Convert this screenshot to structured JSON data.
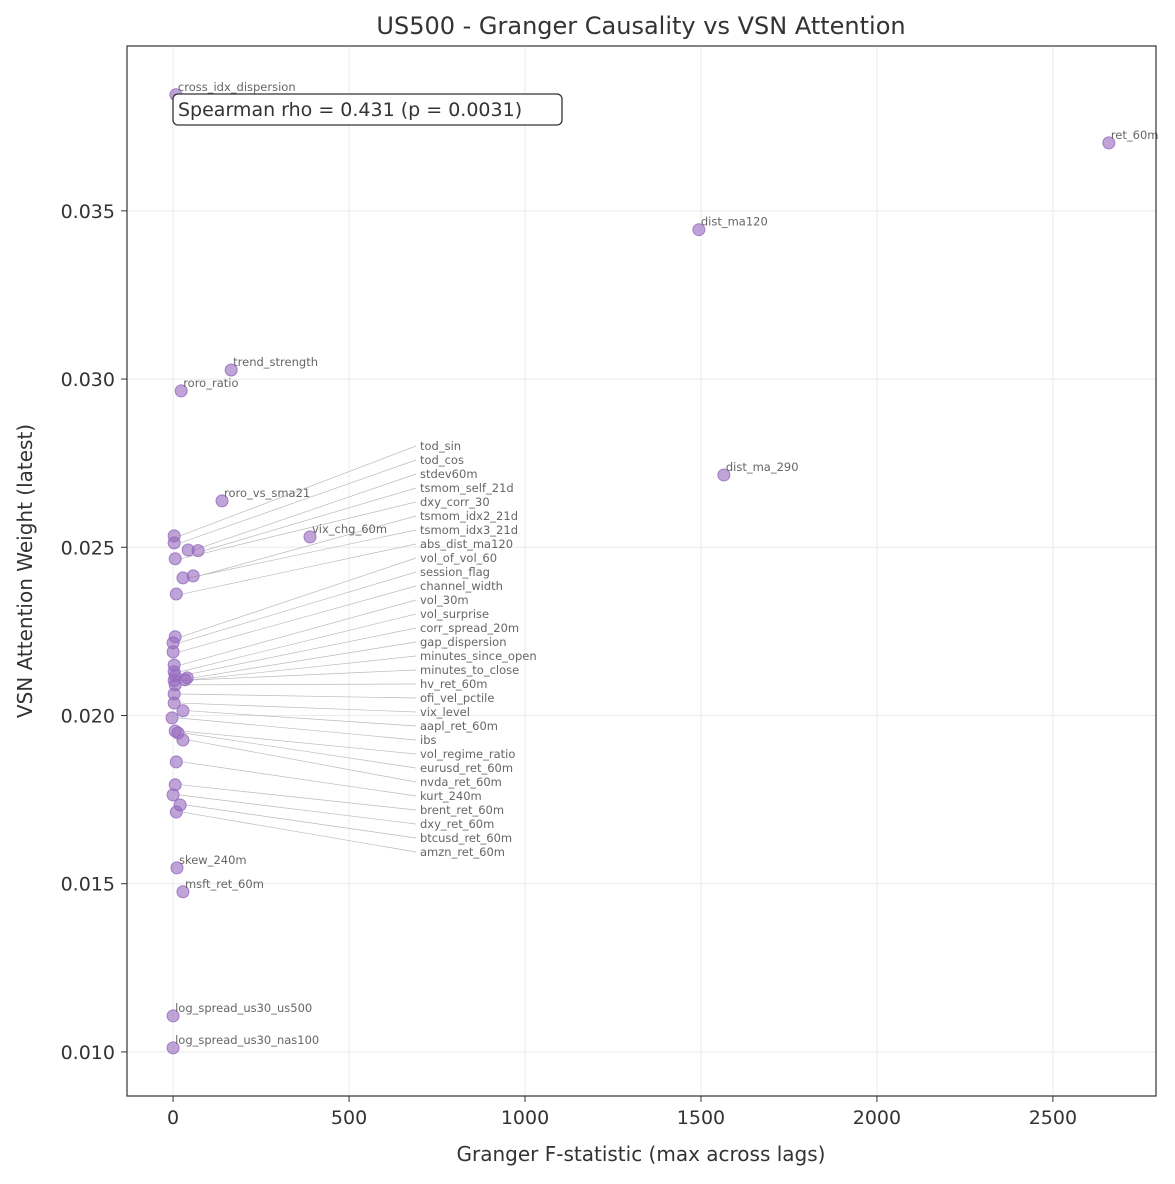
{
  "chart_data": {
    "type": "scatter",
    "title": "US500 - Granger Causality vs VSN Attention",
    "xlabel": "Granger F-statistic (max across lags)",
    "ylabel": "VSN Attention Weight (latest)",
    "xlim": [
      -131,
      2793
    ],
    "ylim": [
      0.00869,
      0.0399
    ],
    "xticks": [
      0,
      500,
      1000,
      1500,
      2000,
      2500
    ],
    "xtick_labels": [
      "0",
      "500",
      "1000",
      "1500",
      "2000",
      "2500"
    ],
    "yticks": [
      0.01,
      0.015,
      0.02,
      0.025,
      0.03,
      0.035
    ],
    "ytick_labels": [
      "0.010",
      "0.015",
      "0.020",
      "0.025",
      "0.030",
      "0.035"
    ],
    "grid": true,
    "point_color": "#9467bd",
    "annotation": "Spearman rho = 0.431 (p = 0.0031)",
    "points": [
      {
        "label": "cross_idx_dispersion",
        "x": 8,
        "y": 0.03845
      },
      {
        "label": "ret_60m",
        "x": 2659,
        "y": 0.03702
      },
      {
        "label": "dist_ma120",
        "x": 1494,
        "y": 0.03444
      },
      {
        "label": "trend_strength",
        "x": 165,
        "y": 0.03027
      },
      {
        "label": "roro_ratio",
        "x": 23,
        "y": 0.02965
      },
      {
        "label": "dist_ma_290",
        "x": 1565,
        "y": 0.02715
      },
      {
        "label": "roro_vs_sma21",
        "x": 139,
        "y": 0.02638
      },
      {
        "label": "vix_chg_60m",
        "x": 389,
        "y": 0.02531
      },
      {
        "label": "tod_sin",
        "x": 3,
        "y": 0.02534
      },
      {
        "label": "tod_cos",
        "x": 3,
        "y": 0.02513
      },
      {
        "label": "stdev60m",
        "x": 43,
        "y": 0.02492
      },
      {
        "label": "tsmom_self_21d",
        "x": 71,
        "y": 0.0249
      },
      {
        "label": "dxy_corr_30",
        "x": 6,
        "y": 0.02466
      },
      {
        "label": "tsmom_idx2_21d",
        "x": 57,
        "y": 0.02415
      },
      {
        "label": "tsmom_idx3_21d",
        "x": 28,
        "y": 0.02409
      },
      {
        "label": "abs_dist_ma120",
        "x": 9,
        "y": 0.02361
      },
      {
        "label": "vol_of_vol_60",
        "x": 6,
        "y": 0.02234
      },
      {
        "label": "session_flag",
        "x": 0,
        "y": 0.02216
      },
      {
        "label": "channel_width",
        "x": 0,
        "y": 0.02189
      },
      {
        "label": "vol_30m",
        "x": 3,
        "y": 0.0215
      },
      {
        "label": "vol_surprise",
        "x": 3,
        "y": 0.0213
      },
      {
        "label": "corr_spread_20m",
        "x": 6,
        "y": 0.02118
      },
      {
        "label": "gap_dispersion",
        "x": 40,
        "y": 0.02112
      },
      {
        "label": "minutes_to_close",
        "x": 3,
        "y": 0.02104
      },
      {
        "label": "minutes_since_open",
        "x": 34,
        "y": 0.02106
      },
      {
        "label": "hv_ret_60m",
        "x": 6,
        "y": 0.02091
      },
      {
        "label": "ofi_vel_pctile",
        "x": 3,
        "y": 0.02064
      },
      {
        "label": "vix_level",
        "x": 3,
        "y": 0.02037
      },
      {
        "label": "aapl_ret_60m",
        "x": 28,
        "y": 0.02014
      },
      {
        "label": "ibs",
        "x": -3,
        "y": 0.01993
      },
      {
        "label": "vol_regime_ratio",
        "x": 6,
        "y": 0.01954
      },
      {
        "label": "eurusd_ret_60m",
        "x": 14,
        "y": 0.01948
      },
      {
        "label": "nvda_ret_60m",
        "x": 28,
        "y": 0.01927
      },
      {
        "label": "kurt_240m",
        "x": 9,
        "y": 0.01862
      },
      {
        "label": "brent_ret_60m",
        "x": 6,
        "y": 0.01794
      },
      {
        "label": "dxy_ret_60m",
        "x": 0,
        "y": 0.01764
      },
      {
        "label": "btcusd_ret_60m",
        "x": 20,
        "y": 0.01734
      },
      {
        "label": "amzn_ret_60m",
        "x": 9,
        "y": 0.01713
      },
      {
        "label": "skew_240m",
        "x": 11,
        "y": 0.01547
      },
      {
        "label": "msft_ret_60m",
        "x": 28,
        "y": 0.01476
      },
      {
        "label": "log_spread_us30_us500",
        "x": 0,
        "y": 0.01107
      },
      {
        "label": "log_spread_us30_nas100",
        "x": 0,
        "y": 0.01012
      }
    ]
  }
}
